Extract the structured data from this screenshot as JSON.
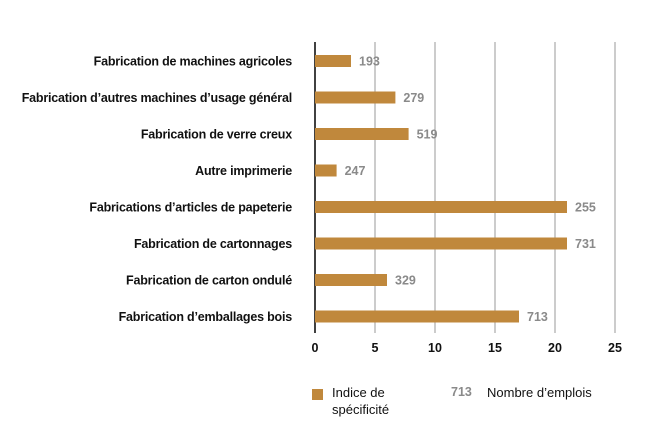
{
  "chart_data": {
    "type": "bar",
    "orientation": "horizontal",
    "categories": [
      "Fabrication de machines agricoles",
      "Fabrication d’autres machines d’usage général",
      "Fabrication de verre creux",
      "Autre imprimerie",
      "Fabrications d’articles de papeterie",
      "Fabrication de cartonnages",
      "Fabrication de carton ondulé",
      "Fabrication d’emballages bois"
    ],
    "series": [
      {
        "name": "Indice de spécificité",
        "values": [
          3,
          6.7,
          7.8,
          1.8,
          21,
          21,
          6,
          17
        ],
        "color": "#c0883c"
      },
      {
        "name": "Nombre d’emplois",
        "values": [
          193,
          279,
          519,
          247,
          255,
          731,
          329,
          713
        ],
        "color": "#8a8a8a"
      }
    ],
    "xlim": [
      0,
      25
    ],
    "xticks": [
      0,
      5,
      10,
      15,
      20,
      25
    ],
    "grid": true,
    "legend_position": "bottom",
    "title": "",
    "xlabel": "",
    "ylabel": ""
  },
  "legend": {
    "item1_label": "Indice de spécificité",
    "item2_sample": "713",
    "item2_label": "Nombre d’emplois"
  }
}
